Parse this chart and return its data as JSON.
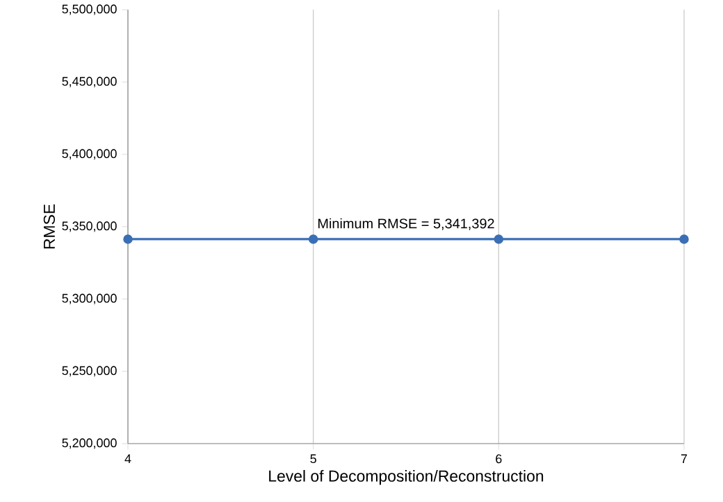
{
  "chart_data": {
    "type": "line",
    "xlabel": "Level of Decomposition/Reconstruction",
    "ylabel": "RMSE",
    "x": [
      4,
      5,
      6,
      7
    ],
    "series": [
      {
        "color": "#3a6fb5",
        "values": [
          5341392,
          5341392,
          5341392,
          5341392
        ]
      }
    ],
    "xlim": [
      4,
      7
    ],
    "xticks": [
      4,
      5,
      6,
      7
    ],
    "ylim": [
      5200000,
      5500000
    ],
    "yticks": [
      {
        "value": 5200000,
        "label": "5,200,000"
      },
      {
        "value": 5250000,
        "label": "5,250,000"
      },
      {
        "value": 5300000,
        "label": "5,300,000"
      },
      {
        "value": 5350000,
        "label": "5,350,000"
      },
      {
        "value": 5400000,
        "label": "5,400,000"
      },
      {
        "value": 5450000,
        "label": "5,450,000"
      },
      {
        "value": 5500000,
        "label": "5,500,000"
      }
    ],
    "annotations": [
      "Minimum RMSE = 5,341,392"
    ],
    "grid": "x",
    "marker": "circle",
    "line_style": "solid"
  }
}
